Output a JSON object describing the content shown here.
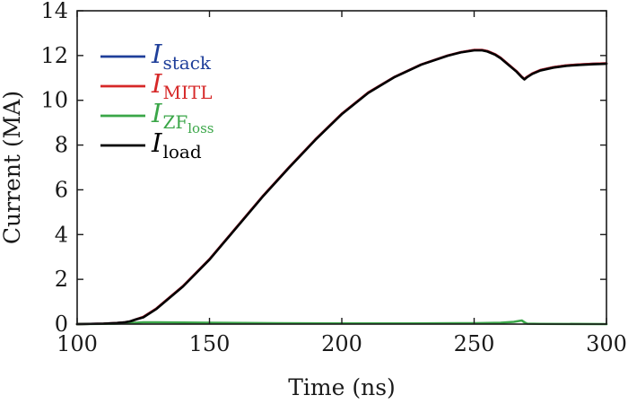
{
  "chart_data": {
    "type": "line",
    "xlabel": "Time (ns)",
    "ylabel": "Current (MA)",
    "xlim": [
      100,
      300
    ],
    "ylim": [
      0,
      14
    ],
    "xticks": [
      100,
      150,
      200,
      250,
      300
    ],
    "yticks": [
      0,
      2,
      4,
      6,
      8,
      10,
      12,
      14
    ],
    "grid": false,
    "legend_position": "top-left",
    "series": [
      {
        "name": "I_stack",
        "label_main": "I",
        "label_sub": "stack",
        "label_subsub": "",
        "color": "#1f3f9a",
        "x": [
          100,
          110,
          115,
          118,
          120,
          122,
          125,
          130,
          140,
          150,
          160,
          170,
          180,
          190,
          200,
          210,
          220,
          230,
          240,
          245,
          250,
          253,
          255,
          258,
          260,
          263,
          266,
          268,
          269,
          270,
          272,
          275,
          280,
          285,
          290,
          295,
          300
        ],
        "y": [
          0.0,
          0.02,
          0.05,
          0.08,
          0.12,
          0.2,
          0.32,
          0.7,
          1.7,
          2.9,
          4.3,
          5.7,
          7.0,
          8.25,
          9.4,
          10.35,
          11.05,
          11.6,
          12.0,
          12.15,
          12.25,
          12.25,
          12.2,
          12.05,
          11.9,
          11.6,
          11.3,
          11.05,
          10.95,
          11.05,
          11.2,
          11.35,
          11.48,
          11.56,
          11.6,
          11.63,
          11.65
        ]
      },
      {
        "name": "I_MITL",
        "label_main": "I",
        "label_sub": "MITL",
        "label_subsub": "",
        "color": "#d62828",
        "x": [
          100,
          110,
          115,
          118,
          120,
          122,
          125,
          130,
          140,
          150,
          160,
          170,
          180,
          190,
          200,
          210,
          220,
          230,
          240,
          245,
          250,
          253,
          255,
          258,
          260,
          263,
          266,
          268,
          269,
          270,
          272,
          275,
          280,
          285,
          290,
          295,
          300
        ],
        "y": [
          0.0,
          0.02,
          0.05,
          0.08,
          0.12,
          0.2,
          0.32,
          0.7,
          1.7,
          2.9,
          4.3,
          5.7,
          7.0,
          8.25,
          9.4,
          10.35,
          11.05,
          11.6,
          12.0,
          12.15,
          12.25,
          12.25,
          12.2,
          12.05,
          11.9,
          11.6,
          11.3,
          11.05,
          10.95,
          11.05,
          11.2,
          11.35,
          11.48,
          11.56,
          11.6,
          11.63,
          11.65
        ]
      },
      {
        "name": "I_ZFloss",
        "label_main": "I",
        "label_sub": "ZF",
        "label_subsub": "loss",
        "color": "#3aa648",
        "x": [
          100,
          115,
          120,
          125,
          130,
          140,
          150,
          175,
          200,
          225,
          250,
          260,
          265,
          268,
          269,
          270,
          275,
          300
        ],
        "y": [
          0.0,
          0.02,
          0.05,
          0.08,
          0.08,
          0.07,
          0.06,
          0.04,
          0.03,
          0.03,
          0.04,
          0.06,
          0.1,
          0.16,
          0.08,
          0.02,
          0.01,
          0.0
        ]
      },
      {
        "name": "I_load",
        "label_main": "I",
        "label_sub": "load",
        "label_subsub": "",
        "color": "#000000",
        "x": [
          100,
          110,
          115,
          118,
          120,
          122,
          125,
          130,
          140,
          150,
          160,
          170,
          180,
          190,
          200,
          210,
          220,
          230,
          240,
          245,
          250,
          253,
          255,
          258,
          260,
          263,
          266,
          268,
          269,
          270,
          272,
          275,
          280,
          285,
          290,
          295,
          300
        ],
        "y": [
          0.0,
          0.02,
          0.05,
          0.08,
          0.12,
          0.2,
          0.3,
          0.68,
          1.68,
          2.88,
          4.28,
          5.68,
          6.98,
          8.23,
          9.38,
          10.33,
          11.04,
          11.59,
          11.99,
          12.14,
          12.23,
          12.23,
          12.18,
          12.03,
          11.88,
          11.58,
          11.28,
          11.03,
          10.93,
          11.03,
          11.18,
          11.33,
          11.46,
          11.54,
          11.58,
          11.61,
          11.63
        ]
      }
    ]
  }
}
